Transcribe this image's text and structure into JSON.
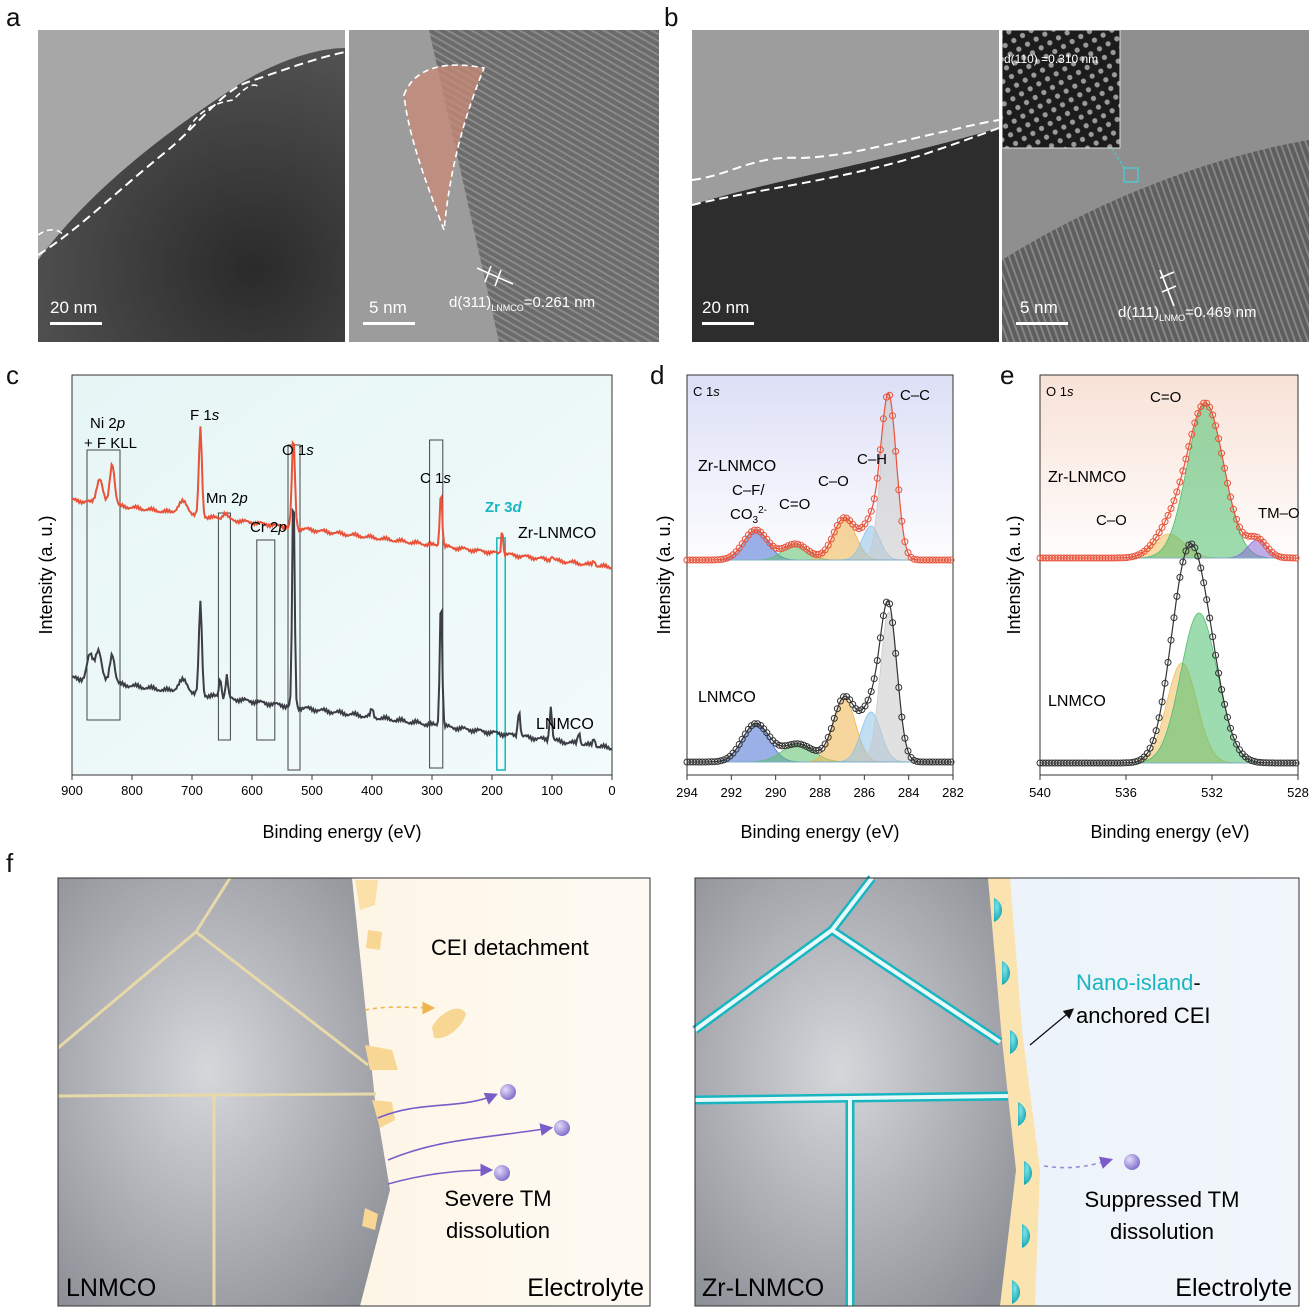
{
  "panel_labels": {
    "a": "a",
    "b": "b",
    "c": "c",
    "d": "d",
    "e": "e",
    "f": "f"
  },
  "tem": {
    "a_left_scale": "20 nm",
    "a_right_scale": "5 nm",
    "a_right_lattice_pre": "d(311)",
    "a_right_lattice_sub": "LNMCO",
    "a_right_lattice_post": "=0.261 nm",
    "b_left_scale": "20 nm",
    "b_right_scale": "5 nm",
    "b_inset": "d(110) =0.310 nm",
    "b_right_lattice_pre": "d(111)",
    "b_right_lattice_sub": "LNMO",
    "b_right_lattice_post": "=0.469 nm"
  },
  "chart_data": [
    {
      "type": "line",
      "panel": "c",
      "xlabel": "Binding energy (eV)",
      "ylabel": "Intensity (a. u.)",
      "xlim": [
        900,
        0
      ],
      "xticks": [
        900,
        800,
        700,
        600,
        500,
        400,
        300,
        200,
        100,
        0
      ],
      "series": [
        {
          "name": "Zr-LNMCO",
          "color": "#e8533a",
          "peaks_eV": [
            854,
            833,
            686,
            531,
            285,
            183
          ]
        },
        {
          "name": "LNMCO",
          "color": "#3d3d45",
          "peaks_eV": [
            856,
            833,
            686,
            642,
            531,
            285,
            155,
            102
          ]
        }
      ],
      "region_labels": [
        "Ni 2p + F KLL",
        "F 1s",
        "Mn 2p",
        "Cr 2p",
        "O 1s",
        "C 1s",
        "Zr 3d"
      ],
      "highlight_color": "#19b6c1"
    },
    {
      "type": "area",
      "panel": "d",
      "title": "C 1s",
      "xlabel": "Binding energy (eV)",
      "ylabel": "Intensity (a. u.)",
      "xlim": [
        294,
        282
      ],
      "xticks": [
        294,
        292,
        290,
        288,
        286,
        284,
        282
      ],
      "series": [
        {
          "name": "Zr-LNMCO",
          "components": [
            {
              "label": "C–F/ CO32-",
              "center": 290.9,
              "color": "#4a6fd6"
            },
            {
              "label": "C=O",
              "center": 289.1,
              "color": "#5cbf6a"
            },
            {
              "label": "C–O",
              "center": 286.9,
              "color": "#f0b44c"
            },
            {
              "label": "C–H",
              "center": 285.7,
              "color": "#8fc3ea"
            },
            {
              "label": "C–C",
              "center": 284.9,
              "color": "#c9c9c9"
            }
          ]
        },
        {
          "name": "LNMCO",
          "components": [
            {
              "center": 290.9,
              "color": "#4a6fd6"
            },
            {
              "center": 289.0,
              "color": "#5cbf6a"
            },
            {
              "center": 286.9,
              "color": "#f0b44c"
            },
            {
              "center": 285.7,
              "color": "#8fc3ea"
            },
            {
              "center": 284.9,
              "color": "#c9c9c9"
            }
          ]
        }
      ]
    },
    {
      "type": "area",
      "panel": "e",
      "title": "O 1s",
      "xlabel": "Binding energy (eV)",
      "ylabel": "Intensity (a. u.)",
      "xlim": [
        540,
        528
      ],
      "xticks": [
        540,
        536,
        532,
        528
      ],
      "series": [
        {
          "name": "Zr-LNMCO",
          "components": [
            {
              "label": "C–O",
              "center": 534.0,
              "color": "#f0c060"
            },
            {
              "label": "C=O",
              "center": 532.3,
              "color": "#4cbf6e"
            },
            {
              "label": "TM–O",
              "center": 529.9,
              "color": "#8a6ad6"
            }
          ]
        },
        {
          "name": "LNMCO",
          "components": [
            {
              "center": 533.4,
              "color": "#f0c060"
            },
            {
              "center": 532.6,
              "color": "#4cbf6e"
            }
          ]
        }
      ]
    }
  ],
  "text": {
    "c_ni": "Ni 2",
    "c_ni_p": "p",
    "c_fkll": "+ F KLL",
    "c_f": "F 1",
    "c_f_s": "s",
    "c_mn": "Mn 2",
    "c_mn_p": "p",
    "c_cr": "Cr 2",
    "c_cr_p": "p",
    "c_o": "O 1",
    "c_o_s": "s",
    "c_c": "C 1",
    "c_c_s": "s",
    "c_zr": "Zr 3",
    "c_zr_d": "d",
    "zr_lnmco": "Zr-LNMCO",
    "lnmco": "LNMCO",
    "d_title": "C 1",
    "d_title_s": "s",
    "d_cc": "C–C",
    "d_ch": "C–H",
    "d_co": "C–O",
    "d_ceo": "C=O",
    "d_cf": "C–F/",
    "d_co3": "CO",
    "d_co3_sub": "3",
    "d_co3_sup": "2-",
    "e_title": "O 1",
    "e_title_s": "s",
    "e_ceo": "C=O",
    "e_co": "C–O",
    "e_tmo": "TM–O",
    "xlabel": "Binding energy (eV)",
    "ylabel": "Intensity (a. u.)"
  },
  "schematic": {
    "left": {
      "cei_detachment": "CEI detachment",
      "severe_1": "Severe TM",
      "severe_2": "dissolution",
      "material": "LNMCO",
      "electrolyte": "Electrolyte"
    },
    "right": {
      "nano_island": "Nano-island",
      "dash": "-",
      "anchored": "anchored CEI",
      "suppressed_1": "Suppressed TM",
      "suppressed_2": "dissolution",
      "material": "Zr-LNMCO",
      "electrolyte": "Electrolyte"
    },
    "colors": {
      "cei": "#fbe3b0",
      "electrolyte_left": "#fdf6e8",
      "electrolyte_right": "#eef4fa",
      "grain": "#9a9ca3",
      "teal": "#19b6c1",
      "ion": "#9a8ad8"
    }
  }
}
